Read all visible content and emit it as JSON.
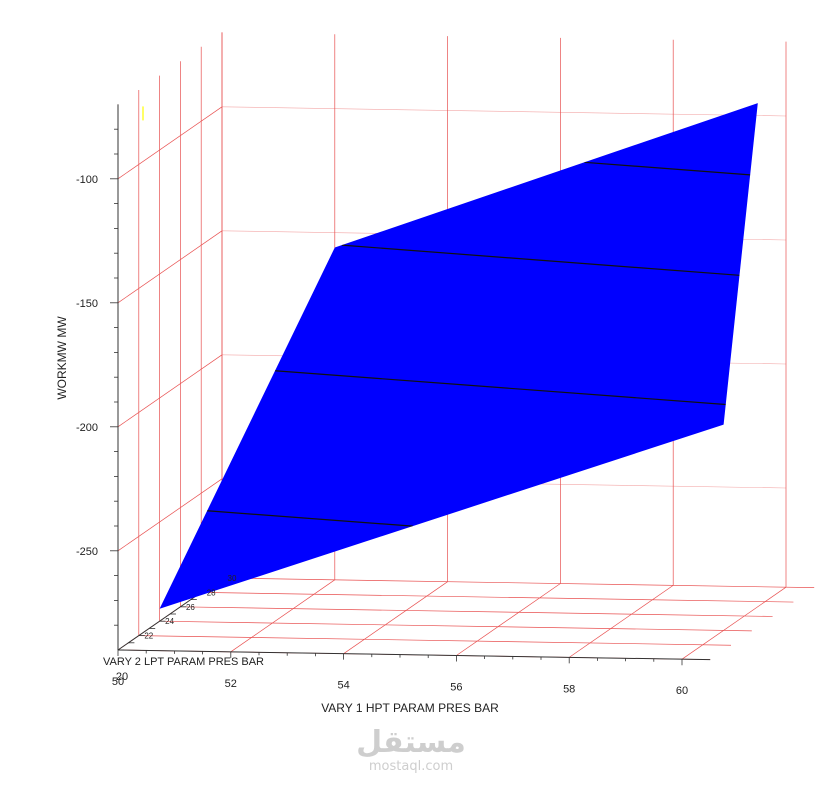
{
  "chart_data": {
    "type": "surface",
    "xlabel": "VARY 1 HPT PARAM PRES BAR",
    "ylabel": "VARY 2 LPT PARAM PRES BAR",
    "zlabel": "WORKMW MW",
    "x_ticks": [
      "50",
      "52",
      "54",
      "56",
      "58",
      "60"
    ],
    "y_ticks": [
      "20",
      "22",
      "24",
      "26",
      "28",
      "30"
    ],
    "z_ticks": [
      "-100",
      "-150",
      "-200",
      "-250"
    ],
    "x_range": [
      50,
      60
    ],
    "y_range": [
      20,
      30
    ],
    "z_range": [
      -290,
      -70
    ],
    "contour_levels": [
      -120,
      -155,
      -200,
      -250
    ],
    "surface_corners": [
      {
        "x": 50,
        "y": 24,
        "z": -285
      },
      {
        "x": 52,
        "y": 30,
        "z": -156
      },
      {
        "x": 59.5,
        "y": 30,
        "z": -95
      },
      {
        "x": 60,
        "y": 24,
        "z": -207
      }
    ],
    "colormap": [
      "#0000ff",
      "#00aaff",
      "#00ffff",
      "#00d29a",
      "#008000",
      "#9acd00",
      "#ffff00",
      "#ffa000",
      "#ff0000"
    ],
    "grid": true
  },
  "watermark": {
    "logo_text": "مستقل",
    "url": "mostaql.com"
  }
}
